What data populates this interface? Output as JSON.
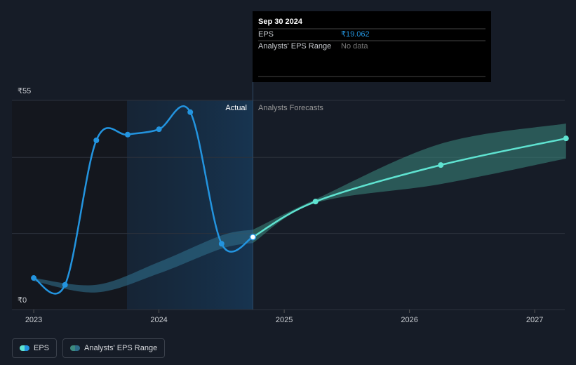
{
  "chart_data": {
    "type": "line",
    "xlim": [
      2022.826,
      2027.24
    ],
    "xticks": [
      2023,
      2024,
      2025,
      2026,
      2027
    ],
    "ylim": [
      0,
      55
    ],
    "yticks": [
      {
        "value": 0,
        "label": "₹0"
      },
      {
        "value": 55,
        "label": "₹55"
      }
    ],
    "gridlines": [
      20,
      40
    ],
    "divider": 2024.75,
    "region_labels": [
      "Actual",
      "Analysts Forecasts"
    ],
    "series": [
      {
        "name": "EPS",
        "color": "#2394df",
        "forecast_color": "#5fe3d1",
        "x": [
          2023.0,
          2023.25,
          2023.5,
          2023.75,
          2024.0,
          2024.25,
          2024.5,
          2024.75,
          2025.25,
          2026.25,
          2027.25
        ],
        "values": [
          8.3,
          6.5,
          44.5,
          46.0,
          47.4,
          51.9,
          17.3,
          19.062,
          28.4,
          38.0,
          45.0
        ]
      },
      {
        "name": "Analysts' EPS Range",
        "color": "#2e6c88",
        "forecast_color": "#3d8a80",
        "x": [
          2023.0,
          2023.5,
          2024.0,
          2024.5,
          2024.75,
          2025.25,
          2026.25,
          2027.25
        ],
        "low": [
          7.5,
          4.5,
          9.5,
          16.0,
          17.5,
          28.0,
          33.0,
          39.7
        ],
        "high": [
          8.3,
          6.5,
          12.5,
          19.5,
          21.0,
          29.0,
          43.6,
          48.9
        ]
      }
    ],
    "tooltip": {
      "date": "Sep 30 2024",
      "rows": [
        [
          "EPS",
          "₹19.062"
        ],
        [
          "Analysts' EPS Range",
          "No data"
        ]
      ]
    }
  }
}
